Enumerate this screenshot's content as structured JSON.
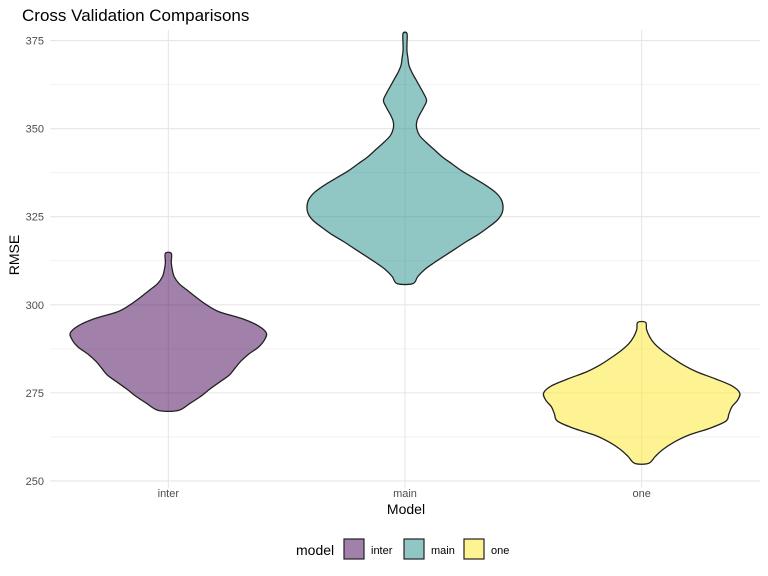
{
  "chart_data": {
    "type": "violin",
    "title": "Cross Validation Comparisons",
    "xlabel": "Model",
    "ylabel": "RMSE",
    "ylim": [
      248,
      378
    ],
    "yticks": [
      250,
      275,
      300,
      325,
      350,
      375
    ],
    "categories": [
      "inter",
      "main",
      "one"
    ],
    "legend": {
      "title": "model",
      "position": "bottom",
      "entries": [
        "inter",
        "main",
        "one"
      ]
    },
    "series": [
      {
        "name": "inter",
        "color": "#440154",
        "profile": [
          [
            270.0,
            0.1
          ],
          [
            272.0,
            0.22
          ],
          [
            274.0,
            0.33
          ],
          [
            276.0,
            0.42
          ],
          [
            278.0,
            0.52
          ],
          [
            280.0,
            0.62
          ],
          [
            282.0,
            0.68
          ],
          [
            284.0,
            0.74
          ],
          [
            286.0,
            0.82
          ],
          [
            288.0,
            0.92
          ],
          [
            290.0,
            0.98
          ],
          [
            292.0,
            1.0
          ],
          [
            294.0,
            0.92
          ],
          [
            296.0,
            0.76
          ],
          [
            298.0,
            0.52
          ],
          [
            300.0,
            0.39
          ],
          [
            302.0,
            0.29
          ],
          [
            304.0,
            0.2
          ],
          [
            306.0,
            0.11
          ],
          [
            308.0,
            0.06
          ],
          [
            310.0,
            0.04
          ],
          [
            312.0,
            0.03
          ],
          [
            314.6,
            0.03
          ]
        ]
      },
      {
        "name": "main",
        "color": "#21908C",
        "profile": [
          [
            306.0,
            0.08
          ],
          [
            308.0,
            0.13
          ],
          [
            310.0,
            0.2
          ],
          [
            312.0,
            0.3
          ],
          [
            314.0,
            0.41
          ],
          [
            316.0,
            0.52
          ],
          [
            318.0,
            0.63
          ],
          [
            320.0,
            0.75
          ],
          [
            322.0,
            0.85
          ],
          [
            324.0,
            0.94
          ],
          [
            326.0,
            0.99
          ],
          [
            328.0,
            1.0
          ],
          [
            330.0,
            0.98
          ],
          [
            332.0,
            0.92
          ],
          [
            334.0,
            0.82
          ],
          [
            336.0,
            0.7
          ],
          [
            338.0,
            0.58
          ],
          [
            340.0,
            0.48
          ],
          [
            342.0,
            0.38
          ],
          [
            344.0,
            0.3
          ],
          [
            346.0,
            0.22
          ],
          [
            348.0,
            0.15
          ],
          [
            350.0,
            0.12
          ],
          [
            352.0,
            0.12
          ],
          [
            354.0,
            0.15
          ],
          [
            356.0,
            0.19
          ],
          [
            358.0,
            0.22
          ],
          [
            360.0,
            0.19
          ],
          [
            362.0,
            0.15
          ],
          [
            364.0,
            0.11
          ],
          [
            366.0,
            0.07
          ],
          [
            368.0,
            0.04
          ],
          [
            370.0,
            0.03
          ],
          [
            372.0,
            0.02
          ],
          [
            374.0,
            0.02
          ],
          [
            377.0,
            0.02
          ]
        ]
      },
      {
        "name": "one",
        "color": "#FDE725",
        "profile": [
          [
            255.0,
            0.07
          ],
          [
            257.0,
            0.14
          ],
          [
            259.0,
            0.22
          ],
          [
            261.0,
            0.33
          ],
          [
            263.0,
            0.48
          ],
          [
            265.0,
            0.7
          ],
          [
            267.0,
            0.86
          ],
          [
            269.0,
            0.89
          ],
          [
            271.0,
            0.92
          ],
          [
            273.0,
            0.98
          ],
          [
            275.0,
            1.0
          ],
          [
            277.0,
            0.92
          ],
          [
            279.0,
            0.75
          ],
          [
            281.0,
            0.56
          ],
          [
            283.0,
            0.42
          ],
          [
            285.0,
            0.31
          ],
          [
            287.0,
            0.21
          ],
          [
            289.0,
            0.13
          ],
          [
            291.0,
            0.08
          ],
          [
            293.0,
            0.05
          ],
          [
            295.0,
            0.04
          ]
        ]
      }
    ]
  }
}
